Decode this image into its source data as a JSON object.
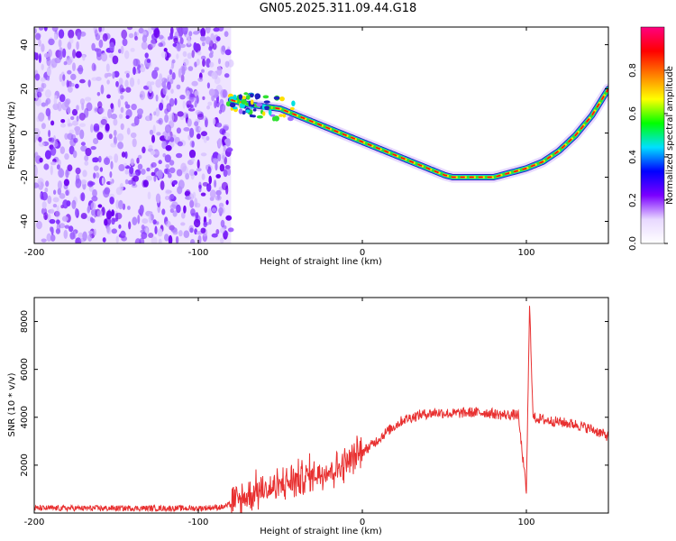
{
  "title": "GN05.2025.311.09.44.G18",
  "chart_data": [
    {
      "type": "heatmap",
      "name": "spectrogram",
      "xlabel": "Height of straight line (km)",
      "ylabel": "Frequency (Hz)",
      "xlim": [
        -200,
        150
      ],
      "ylim": [
        -50,
        48
      ],
      "xticks": [
        -200,
        -100,
        0,
        100
      ],
      "yticks": [
        -40,
        -20,
        0,
        20,
        40
      ],
      "noise_region_x": [
        -200,
        -80
      ],
      "ridge": {
        "x": [
          -80,
          -70,
          -60,
          -50,
          -40,
          -30,
          -20,
          -10,
          0,
          10,
          20,
          30,
          40,
          50,
          55,
          60,
          70,
          80,
          90,
          95,
          100,
          110,
          120,
          130,
          140,
          150
        ],
        "y": [
          15,
          13,
          12,
          11,
          8,
          5,
          2,
          -1,
          -4,
          -7,
          -10,
          -13,
          -16,
          -19,
          -20,
          -20,
          -20,
          -20,
          -18,
          -17,
          -16,
          -13,
          -8,
          -1,
          8,
          20
        ]
      },
      "colorbar": {
        "label": "Normalized spectral amplitude",
        "ticks": [
          "0.0",
          "0.2",
          "0.4",
          "0.6",
          "0.8"
        ],
        "range": [
          0,
          1
        ],
        "colors": [
          "#ffffff",
          "#e8d8ff",
          "#7a00ff",
          "#0000ff",
          "#00e0ff",
          "#00ff00",
          "#ffff00",
          "#ff8000",
          "#ff0000",
          "#ff0080"
        ]
      }
    },
    {
      "type": "line",
      "name": "snr",
      "xlabel": "Height of straight line (km)",
      "ylabel": "SNR (10 * v/v)",
      "xlim": [
        -200,
        150
      ],
      "ylim": [
        0,
        9000
      ],
      "xticks": [
        -200,
        -100,
        0,
        100
      ],
      "yticks": [
        2000,
        4000,
        6000,
        8000
      ],
      "color": "#e83030",
      "series": {
        "x": [
          -200,
          -150,
          -100,
          -85,
          -75,
          -65,
          -55,
          -45,
          -35,
          -25,
          -15,
          -5,
          5,
          15,
          25,
          35,
          45,
          55,
          65,
          75,
          85,
          95,
          100,
          102,
          104,
          110,
          120,
          130,
          140,
          150
        ],
        "y": [
          200,
          200,
          200,
          250,
          500,
          900,
          1000,
          1300,
          1500,
          1700,
          1900,
          2300,
          2800,
          3400,
          3900,
          4100,
          4200,
          4150,
          4200,
          4200,
          4100,
          4100,
          900,
          8800,
          4000,
          3900,
          3800,
          3700,
          3500,
          3200
        ]
      }
    }
  ]
}
